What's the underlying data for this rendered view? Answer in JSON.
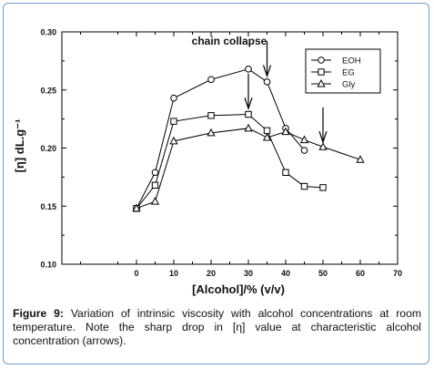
{
  "chart_data": {
    "type": "line",
    "annotation": "chain collapse",
    "xlabel": "[Alcohol]/% (v/v)",
    "ylabel": "[η] dL.g⁻¹",
    "xlim": [
      -20,
      70
    ],
    "ylim": [
      0.1,
      0.3
    ],
    "x_ticks": [
      "0",
      "10",
      "20",
      "30",
      "40",
      "50",
      "60",
      "70"
    ],
    "y_ticks": [
      "0.10",
      "0.15",
      "0.20",
      "0.25",
      "0.30"
    ],
    "legend_position": "top-right",
    "series": [
      {
        "name": "EOH",
        "marker": "circle",
        "x": [
          0,
          5,
          10,
          20,
          30,
          35,
          40,
          45
        ],
        "values": [
          0.148,
          0.179,
          0.243,
          0.259,
          0.268,
          0.257,
          0.217,
          0.198
        ]
      },
      {
        "name": "EG",
        "marker": "square",
        "x": [
          0,
          5,
          10,
          20,
          30,
          35,
          40,
          45,
          50
        ],
        "values": [
          0.148,
          0.168,
          0.223,
          0.228,
          0.229,
          0.215,
          0.179,
          0.167,
          0.166
        ]
      },
      {
        "name": "Gly",
        "marker": "triangle",
        "x": [
          0,
          5,
          10,
          20,
          30,
          35,
          40,
          45,
          50,
          60
        ],
        "values": [
          0.148,
          0.154,
          0.206,
          0.213,
          0.217,
          0.209,
          0.214,
          0.207,
          0.201,
          0.19
        ]
      }
    ],
    "arrows_at_x": [
      35,
      30,
      50
    ]
  },
  "caption": {
    "label": "Figure 9:",
    "text": " Variation of intrinsic viscosity with alcohol concentrations at room temperature. Note the sharp drop in [η] value at characteristic alcohol concentration (arrows)."
  }
}
